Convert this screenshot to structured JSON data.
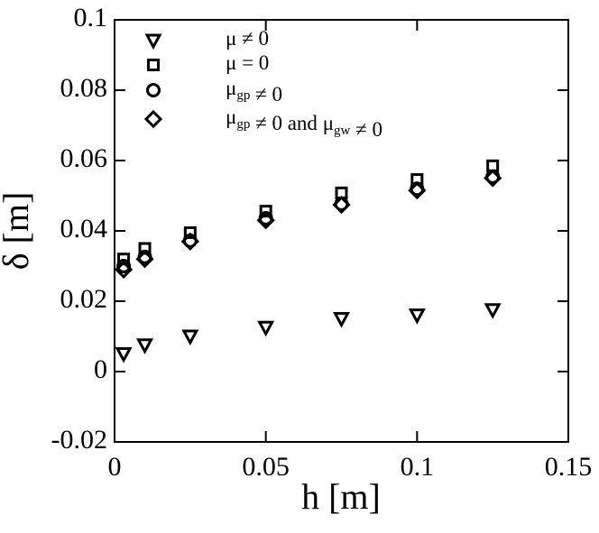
{
  "chart_data": {
    "type": "scatter",
    "x_label": "h [m]",
    "y_label": "δ [m]",
    "xlim": [
      0,
      0.15
    ],
    "ylim": [
      -0.02,
      0.1
    ],
    "xticks": [
      0,
      0.05,
      0.1,
      0.15
    ],
    "yticks": [
      -0.02,
      0,
      0.02,
      0.04,
      0.06,
      0.08,
      0.1
    ],
    "grid": false,
    "legend": "upper left",
    "x": [
      0.003,
      0.01,
      0.025,
      0.05,
      0.075,
      0.1,
      0.125
    ],
    "series": [
      {
        "name": "μ ≠ 0",
        "color": "#000000",
        "marker": "triangle-down",
        "values": [
          0.005,
          0.0075,
          0.01,
          0.0125,
          0.015,
          0.016,
          0.0175
        ]
      },
      {
        "name": "μ = 0",
        "color": "#000000",
        "marker": "square",
        "values": [
          0.032,
          0.035,
          0.0395,
          0.0456,
          0.0508,
          0.0546,
          0.0585
        ]
      },
      {
        "name": "μgp ≠ 0",
        "color": "#000000",
        "marker": "circle",
        "values": [
          0.03,
          0.0326,
          0.0372,
          0.0436,
          0.0477,
          0.052,
          0.0554
        ]
      },
      {
        "name": "μgp ≠ 0 and μgw ≠ 0",
        "color": "#000000",
        "marker": "diamond",
        "values": [
          0.029,
          0.032,
          0.037,
          0.043,
          0.0474,
          0.0515,
          0.055
        ]
      }
    ]
  }
}
